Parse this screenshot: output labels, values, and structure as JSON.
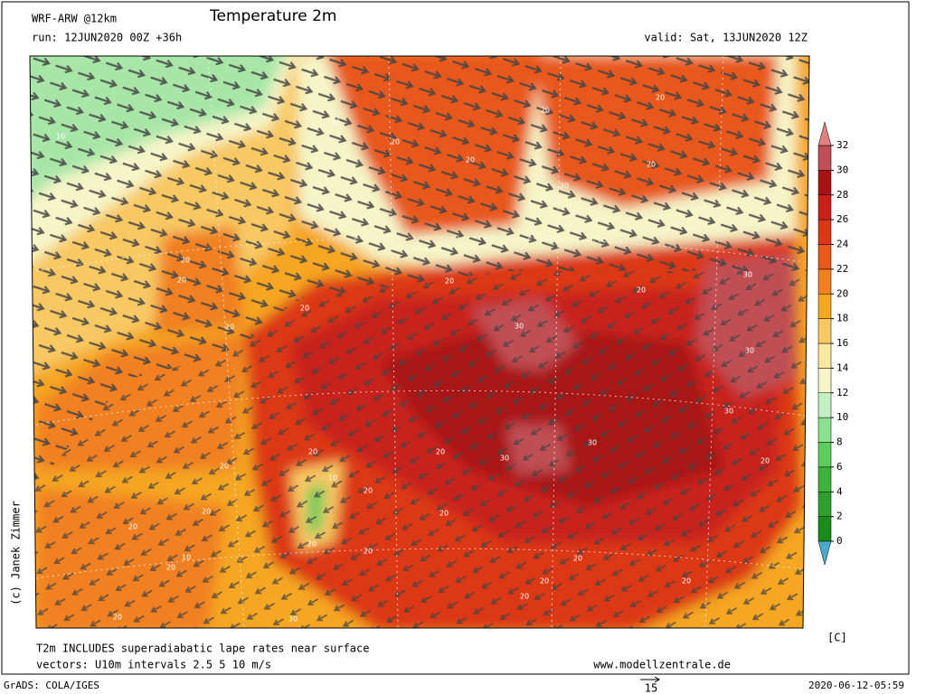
{
  "header": {
    "model": "WRF-ARW @12km",
    "title": "Temperature 2m",
    "run": "run: 12JUN2020 00Z +36h",
    "valid": "valid: Sat, 13JUN2020 12Z"
  },
  "legend": {
    "ticks": [
      0,
      2,
      4,
      6,
      8,
      10,
      12,
      14,
      16,
      18,
      20,
      22,
      24,
      26,
      28,
      30,
      32
    ],
    "colors": [
      "#1a8c1a",
      "#2ea02e",
      "#3cb43c",
      "#5ccc5c",
      "#8de08d",
      "#c2f0c2",
      "#f5f5c8",
      "#fae7a0",
      "#f8c864",
      "#f5a623",
      "#f08020",
      "#e8581a",
      "#dc3818",
      "#c8201a",
      "#a81212",
      "#c05055"
    ],
    "under_color": "#4aaacc",
    "over_color": "#e08080",
    "unit": "[C]"
  },
  "map": {
    "contour_labels": [
      20,
      20,
      20,
      20,
      20,
      20,
      20,
      20,
      20,
      20,
      20,
      20,
      30,
      20,
      30,
      30,
      30,
      30,
      30,
      20,
      20,
      20,
      10,
      20,
      20,
      20,
      20,
      10,
      20,
      20,
      20,
      20,
      20,
      20,
      20,
      20,
      30,
      20,
      10
    ],
    "vector_color": "#444444"
  },
  "footer": {
    "note": "T2m INCLUDES superadiabatic lape rates near surface",
    "vectors": "vectors: U10m intervals 2.5 5 10 m/s",
    "website": "www.modellzentrale.de",
    "copyright": "(c) Janek Zimmer",
    "software": "GrADS: COLA/IGES",
    "vector_scale": 15,
    "timestamp": "2020-06-12-05:59"
  }
}
